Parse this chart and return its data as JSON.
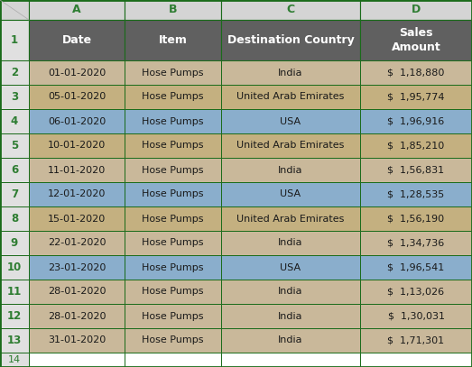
{
  "col_labels": [
    "A",
    "B",
    "C",
    "D"
  ],
  "header_row": [
    "Date",
    "Item",
    "Destination Country",
    "Sales\nAmount"
  ],
  "rows": [
    [
      "01-01-2020",
      "Hose Pumps",
      "India",
      "$  1,18,880"
    ],
    [
      "05-01-2020",
      "Hose Pumps",
      "United Arab Emirates",
      "$  1,95,774"
    ],
    [
      "06-01-2020",
      "Hose Pumps",
      "USA",
      "$  1,96,916"
    ],
    [
      "10-01-2020",
      "Hose Pumps",
      "United Arab Emirates",
      "$  1,85,210"
    ],
    [
      "11-01-2020",
      "Hose Pumps",
      "India",
      "$  1,56,831"
    ],
    [
      "12-01-2020",
      "Hose Pumps",
      "USA",
      "$  1,28,535"
    ],
    [
      "15-01-2020",
      "Hose Pumps",
      "United Arab Emirates",
      "$  1,56,190"
    ],
    [
      "22-01-2020",
      "Hose Pumps",
      "India",
      "$  1,34,736"
    ],
    [
      "23-01-2020",
      "Hose Pumps",
      "USA",
      "$  1,96,541"
    ],
    [
      "28-01-2020",
      "Hose Pumps",
      "India",
      "$  1,13,026"
    ],
    [
      "28-01-2020",
      "Hose Pumps",
      "India",
      "$  1,30,031"
    ],
    [
      "31-01-2020",
      "Hose Pumps",
      "India",
      "$  1,71,301"
    ]
  ],
  "row_colors": [
    "#c9b89a",
    "#c4b080",
    "#8aaecc",
    "#c4b080",
    "#c9b89a",
    "#8aaecc",
    "#c4b080",
    "#c9b89a",
    "#8aaecc",
    "#c9b89a",
    "#c9b89a",
    "#c9b89a"
  ],
  "header_bg": "#606060",
  "header_text_color": "#ffffff",
  "rownumber_bg": "#e0e0e0",
  "rownumber_color": "#2e7d32",
  "col_header_bg": "#d4d4d4",
  "col_header_color": "#2e7d32",
  "border_color": "#1a6b1a",
  "text_color": "#1a1a1a",
  "fig_bg": "#ffffff",
  "corner_bg": "#d4d4d4",
  "col14_bg": "#f0f0f0",
  "row14_bg": "#f5f5f5"
}
